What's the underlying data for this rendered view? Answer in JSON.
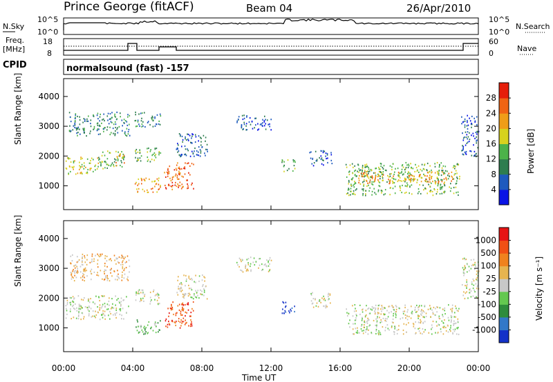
{
  "header": {
    "station": "Prince George (fitACF)",
    "beam": "Beam 04",
    "date": "26/Apr/2010"
  },
  "noise_panel": {
    "left_label": "N.Sky",
    "right_label": "N.Search",
    "ticks_left": [
      "10^5",
      "10^0"
    ],
    "ticks_right": [
      "10^5",
      "10^0"
    ]
  },
  "freq_panel": {
    "left_label_1": "Freq.",
    "left_label_2": "[MHz]",
    "right_label": "Nave",
    "ticks_left": [
      "18",
      "8"
    ],
    "ticks_right": [
      "60",
      "0"
    ]
  },
  "cpid": {
    "label": "CPID",
    "program": "normalsound (fast) -157"
  },
  "x_axis": {
    "label": "Time UT",
    "ticks": [
      "00:00",
      "04:00",
      "08:00",
      "12:00",
      "16:00",
      "20:00",
      "00:00"
    ]
  },
  "chart_data": [
    {
      "type": "heatmap",
      "title": "",
      "xlabel": "Time UT",
      "ylabel": "Slant Range [km]",
      "x_ticks": [
        "00:00",
        "04:00",
        "08:00",
        "12:00",
        "16:00",
        "20:00",
        "00:00"
      ],
      "xlim_hours": [
        0,
        24
      ],
      "ylim_km": [
        200,
        4600
      ],
      "y_ticks": [
        1000,
        2000,
        3000,
        4000
      ],
      "colorbar": {
        "label": "Power [dB]",
        "ticks": [
          "4",
          "8",
          "12",
          "16",
          "20",
          "24",
          "28"
        ],
        "colors": [
          "#0a14e6",
          "#1e5abe",
          "#2e7d4f",
          "#4cb24a",
          "#d7d21e",
          "#f09d18",
          "#f06414",
          "#e61e0a"
        ]
      }
    },
    {
      "type": "heatmap",
      "title": "",
      "xlabel": "Time UT",
      "ylabel": "Slant Range [km]",
      "x_ticks": [
        "00:00",
        "04:00",
        "08:00",
        "12:00",
        "16:00",
        "20:00",
        "00:00"
      ],
      "xlim_hours": [
        0,
        24
      ],
      "ylim_km": [
        200,
        4600
      ],
      "y_ticks": [
        1000,
        2000,
        3000,
        4000
      ],
      "colorbar": {
        "label": "Velocity [m s⁻¹]",
        "ticks": [
          "1000",
          "500",
          "100",
          "25",
          "-25",
          "-100",
          "-500",
          "-1000"
        ],
        "colors": [
          "#1432c8",
          "#3278c8",
          "#2e8c3c",
          "#64c850",
          "#c8c8c8",
          "#e6b450",
          "#f0821e",
          "#f05014",
          "#e61414"
        ]
      }
    }
  ],
  "legend_power_blobs": [
    {
      "t0": 0.1,
      "t1": 2.0,
      "r0": 1400,
      "r1": 2000,
      "c": 4
    },
    {
      "t0": 2.0,
      "t1": 3.5,
      "r0": 1600,
      "r1": 2200,
      "c": 3
    },
    {
      "t0": 0.3,
      "t1": 3.8,
      "r0": 2700,
      "r1": 3500,
      "c": 2
    },
    {
      "t0": 3.0,
      "t1": 3.5,
      "r0": 1700,
      "r1": 2100,
      "c": 5
    },
    {
      "t0": 4.1,
      "t1": 5.6,
      "r0": 800,
      "r1": 1300,
      "c": 5
    },
    {
      "t0": 4.1,
      "t1": 5.6,
      "r0": 1800,
      "r1": 2300,
      "c": 3
    },
    {
      "t0": 4.1,
      "t1": 5.6,
      "r0": 3000,
      "r1": 3500,
      "c": 2
    },
    {
      "t0": 5.8,
      "t1": 7.5,
      "r0": 900,
      "r1": 1800,
      "c": 6
    },
    {
      "t0": 6.5,
      "t1": 8.3,
      "r0": 2000,
      "r1": 2800,
      "c": 1
    },
    {
      "t0": 10.0,
      "t1": 12.0,
      "r0": 2900,
      "r1": 3400,
      "c": 1
    },
    {
      "t0": 12.6,
      "t1": 13.4,
      "r0": 1500,
      "r1": 1900,
      "c": 3
    },
    {
      "t0": 14.2,
      "t1": 15.5,
      "r0": 1700,
      "r1": 2200,
      "c": 1
    },
    {
      "t0": 16.3,
      "t1": 22.9,
      "r0": 700,
      "r1": 1800,
      "c": 3
    },
    {
      "t0": 17.0,
      "t1": 22.5,
      "r0": 1100,
      "r1": 1500,
      "c": 5
    },
    {
      "t0": 23.0,
      "t1": 24.0,
      "r0": 2000,
      "r1": 3400,
      "c": 1
    }
  ],
  "legend_velocity_blobs": [
    {
      "t0": 0.1,
      "t1": 3.8,
      "r0": 1300,
      "r1": 2100,
      "c": 4
    },
    {
      "t0": 0.3,
      "t1": 3.8,
      "r0": 2600,
      "r1": 3500,
      "c": 5
    },
    {
      "t0": 4.1,
      "t1": 5.6,
      "r0": 1800,
      "r1": 2300,
      "c": 4
    },
    {
      "t0": 4.1,
      "t1": 5.6,
      "r0": 800,
      "r1": 1300,
      "c": 3
    },
    {
      "t0": 5.8,
      "t1": 7.5,
      "r0": 1000,
      "r1": 1900,
      "c": 7
    },
    {
      "t0": 6.5,
      "t1": 8.3,
      "r0": 2000,
      "r1": 2800,
      "c": 4
    },
    {
      "t0": 10.0,
      "t1": 12.0,
      "r0": 2900,
      "r1": 3400,
      "c": 4
    },
    {
      "t0": 12.6,
      "t1": 13.4,
      "r0": 1500,
      "r1": 1900,
      "c": 0
    },
    {
      "t0": 14.2,
      "t1": 15.5,
      "r0": 1700,
      "r1": 2200,
      "c": 4
    },
    {
      "t0": 16.3,
      "t1": 22.9,
      "r0": 800,
      "r1": 1800,
      "c": 4
    },
    {
      "t0": 23.0,
      "t1": 24.0,
      "r0": 2000,
      "r1": 3400,
      "c": 4
    }
  ]
}
